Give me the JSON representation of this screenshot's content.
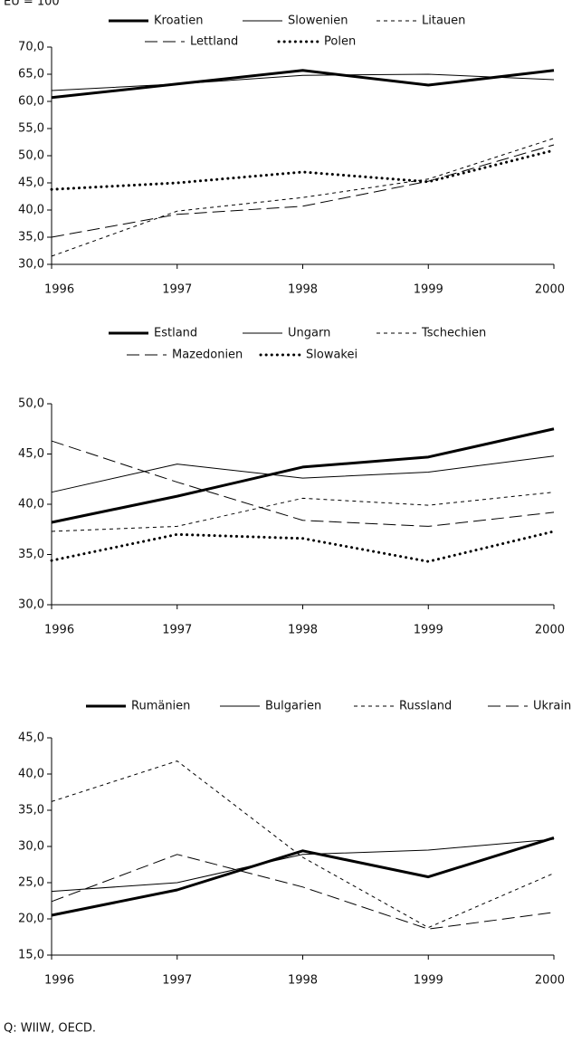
{
  "note": "EU = 100",
  "source": "Q: WIIW, OECD.",
  "chart_data": [
    {
      "type": "line",
      "categories": [
        "1996",
        "1997",
        "1998",
        "1999",
        "2000"
      ],
      "ylim": [
        30,
        70
      ],
      "yticks": [
        {
          "value": 30,
          "label": "30,0"
        },
        {
          "value": 35,
          "label": "35,0"
        },
        {
          "value": 40,
          "label": "40,0"
        },
        {
          "value": 45,
          "label": "45,0"
        },
        {
          "value": 50,
          "label": "50,0"
        },
        {
          "value": 55,
          "label": "55,0"
        },
        {
          "value": 60,
          "label": "60,0"
        },
        {
          "value": 65,
          "label": "65,0"
        },
        {
          "value": 70,
          "label": "70,0"
        }
      ],
      "series": [
        {
          "name": "Kroatien",
          "color": "#000000",
          "style": "thick",
          "values": [
            60.7,
            63.2,
            65.7,
            63.0,
            65.7
          ]
        },
        {
          "name": "Slowenien",
          "color": "#000000",
          "style": "solid",
          "values": [
            62.0,
            63.2,
            64.8,
            65.0,
            64.0
          ]
        },
        {
          "name": "Litauen",
          "color": "#000000",
          "style": "dash",
          "values": [
            31.5,
            39.8,
            42.3,
            45.7,
            53.2
          ]
        },
        {
          "name": "Lettland",
          "color": "#000000",
          "style": "longdash",
          "values": [
            35.0,
            39.2,
            40.7,
            45.3,
            52.0
          ]
        },
        {
          "name": "Polen",
          "color": "#000000",
          "style": "dot",
          "values": [
            43.8,
            45.0,
            47.0,
            45.2,
            51.0
          ]
        }
      ]
    },
    {
      "type": "line",
      "categories": [
        "1996",
        "1997",
        "1998",
        "1999",
        "2000"
      ],
      "ylim": [
        30,
        50
      ],
      "yticks": [
        {
          "value": 30,
          "label": "30,0"
        },
        {
          "value": 35,
          "label": "35,0"
        },
        {
          "value": 40,
          "label": "40,0"
        },
        {
          "value": 45,
          "label": "45,0"
        },
        {
          "value": 50,
          "label": "50,0"
        }
      ],
      "series": [
        {
          "name": "Estland",
          "color": "#000000",
          "style": "thick",
          "values": [
            38.2,
            40.8,
            43.7,
            44.7,
            47.5
          ]
        },
        {
          "name": "Ungarn",
          "color": "#000000",
          "style": "solid",
          "values": [
            41.2,
            44.0,
            42.6,
            43.2,
            44.8
          ]
        },
        {
          "name": "Tschechien",
          "color": "#000000",
          "style": "dash",
          "values": [
            37.3,
            37.8,
            40.6,
            39.9,
            41.2
          ]
        },
        {
          "name": "Mazedonien",
          "color": "#000000",
          "style": "longdash",
          "values": [
            46.3,
            42.2,
            38.4,
            37.8,
            39.2
          ]
        },
        {
          "name": "Slowakei",
          "color": "#000000",
          "style": "dot",
          "values": [
            34.4,
            37.0,
            36.6,
            34.3,
            37.3
          ]
        }
      ]
    },
    {
      "type": "line",
      "categories": [
        "1996",
        "1997",
        "1998",
        "1999",
        "2000"
      ],
      "ylim": [
        15,
        45
      ],
      "yticks": [
        {
          "value": 15,
          "label": "15,0"
        },
        {
          "value": 20,
          "label": "20,0"
        },
        {
          "value": 25,
          "label": "25,0"
        },
        {
          "value": 30,
          "label": "30,0"
        },
        {
          "value": 35,
          "label": "35,0"
        },
        {
          "value": 40,
          "label": "40,0"
        },
        {
          "value": 45,
          "label": "45,0"
        }
      ],
      "series": [
        {
          "name": "Rumänien",
          "color": "#000000",
          "style": "thick",
          "values": [
            20.5,
            24.0,
            29.4,
            25.8,
            31.2
          ]
        },
        {
          "name": "Bulgarien",
          "color": "#000000",
          "style": "solid",
          "values": [
            23.8,
            25.0,
            28.9,
            29.5,
            31.0
          ]
        },
        {
          "name": "Russland",
          "color": "#000000",
          "style": "dash",
          "values": [
            36.2,
            41.8,
            28.5,
            18.8,
            26.3
          ]
        },
        {
          "name": "Ukraine",
          "color": "#000000",
          "style": "longdash",
          "values": [
            22.4,
            28.9,
            24.4,
            18.6,
            20.9
          ]
        }
      ]
    }
  ]
}
